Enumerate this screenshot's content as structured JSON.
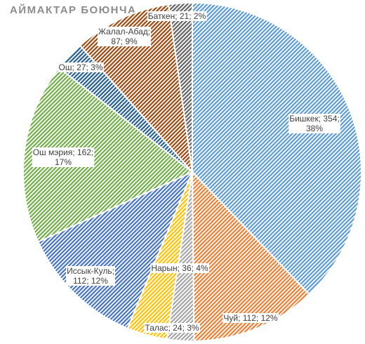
{
  "chart_data": {
    "type": "pie",
    "title": "АЙМАКТАР БОЮНЧА",
    "slices": [
      {
        "label": "Бишкек",
        "value": 354,
        "percent": "38%",
        "color": "#5b9bd5",
        "label_text": [
          "Бишкек; 354;",
          "38%"
        ]
      },
      {
        "label": "Чуй",
        "value": 112,
        "percent": "12%",
        "color": "#ed7d31",
        "label_text": [
          "Чуй; 112; 12%"
        ]
      },
      {
        "label": "Талас",
        "value": 24,
        "percent": "3%",
        "color": "#a5a5a5",
        "label_text": [
          "Талас; 24; 3%"
        ]
      },
      {
        "label": "Нарын",
        "value": 36,
        "percent": "4%",
        "color": "#ffc000",
        "label_text": [
          "Нарын; 36; 4%"
        ]
      },
      {
        "label": "Иссык-Куль",
        "value": 112,
        "percent": "12%",
        "color": "#4472c4",
        "label_text": [
          "Иссык-Куль;",
          "112; 12%"
        ]
      },
      {
        "label": "Ош мэрия",
        "value": 162,
        "percent": "17%",
        "color": "#70ad47",
        "label_text": [
          "Ош мэрия; 162;",
          "17%"
        ]
      },
      {
        "label": "Ош",
        "value": 27,
        "percent": "3%",
        "color": "#255e91",
        "label_text": [
          "Ош; 27; 3%"
        ]
      },
      {
        "label": "Жалал-Абад",
        "value": 87,
        "percent": "9%",
        "color": "#9e480e",
        "label_text": [
          "Жалал-Абад;",
          "87; 9%"
        ]
      },
      {
        "label": "Баткен",
        "value": 21,
        "percent": "2%",
        "color": "#636363",
        "label_text": [
          "Баткен; 21; 2%"
        ]
      }
    ],
    "start_angle": "12 o'clock",
    "direction": "clockwise",
    "fill_style": "diagonal hatch",
    "legend": "none"
  }
}
